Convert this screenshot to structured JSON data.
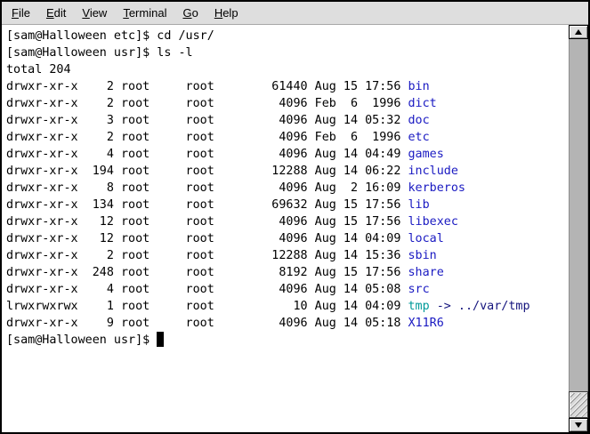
{
  "palette": {
    "menu_bg": "#dedede",
    "terminal_bg": "#ffffff",
    "terminal_fg": "#000000",
    "dir_color": "#1a1ac2",
    "symlink_color": "#009a9a",
    "symlink_target_color": "#14147d"
  },
  "menu_bar": {
    "items": [
      {
        "label": "File"
      },
      {
        "label": "Edit"
      },
      {
        "label": "View"
      },
      {
        "label": "Terminal"
      },
      {
        "label": "Go"
      },
      {
        "label": "Help"
      }
    ]
  },
  "terminal": {
    "history": [
      "[sam@Halloween etc]$ cd /usr/",
      "[sam@Halloween usr]$ ls -l",
      "total 204"
    ],
    "listing": [
      {
        "perms": "drwxr-xr-x",
        "links": 2,
        "owner": "root",
        "group": "root",
        "size": 61440,
        "month": "Aug",
        "day": "15",
        "time": "17:56",
        "name": "bin",
        "type": "dir"
      },
      {
        "perms": "drwxr-xr-x",
        "links": 2,
        "owner": "root",
        "group": "root",
        "size": 4096,
        "month": "Feb",
        "day": "6",
        "time": "1996",
        "name": "dict",
        "type": "dir"
      },
      {
        "perms": "drwxr-xr-x",
        "links": 3,
        "owner": "root",
        "group": "root",
        "size": 4096,
        "month": "Aug",
        "day": "14",
        "time": "05:32",
        "name": "doc",
        "type": "dir"
      },
      {
        "perms": "drwxr-xr-x",
        "links": 2,
        "owner": "root",
        "group": "root",
        "size": 4096,
        "month": "Feb",
        "day": "6",
        "time": "1996",
        "name": "etc",
        "type": "dir"
      },
      {
        "perms": "drwxr-xr-x",
        "links": 4,
        "owner": "root",
        "group": "root",
        "size": 4096,
        "month": "Aug",
        "day": "14",
        "time": "04:49",
        "name": "games",
        "type": "dir"
      },
      {
        "perms": "drwxr-xr-x",
        "links": 194,
        "owner": "root",
        "group": "root",
        "size": 12288,
        "month": "Aug",
        "day": "14",
        "time": "06:22",
        "name": "include",
        "type": "dir"
      },
      {
        "perms": "drwxr-xr-x",
        "links": 8,
        "owner": "root",
        "group": "root",
        "size": 4096,
        "month": "Aug",
        "day": "2",
        "time": "16:09",
        "name": "kerberos",
        "type": "dir"
      },
      {
        "perms": "drwxr-xr-x",
        "links": 134,
        "owner": "root",
        "group": "root",
        "size": 69632,
        "month": "Aug",
        "day": "15",
        "time": "17:56",
        "name": "lib",
        "type": "dir"
      },
      {
        "perms": "drwxr-xr-x",
        "links": 12,
        "owner": "root",
        "group": "root",
        "size": 4096,
        "month": "Aug",
        "day": "15",
        "time": "17:56",
        "name": "libexec",
        "type": "dir"
      },
      {
        "perms": "drwxr-xr-x",
        "links": 12,
        "owner": "root",
        "group": "root",
        "size": 4096,
        "month": "Aug",
        "day": "14",
        "time": "04:09",
        "name": "local",
        "type": "dir"
      },
      {
        "perms": "drwxr-xr-x",
        "links": 2,
        "owner": "root",
        "group": "root",
        "size": 12288,
        "month": "Aug",
        "day": "14",
        "time": "15:36",
        "name": "sbin",
        "type": "dir"
      },
      {
        "perms": "drwxr-xr-x",
        "links": 248,
        "owner": "root",
        "group": "root",
        "size": 8192,
        "month": "Aug",
        "day": "15",
        "time": "17:56",
        "name": "share",
        "type": "dir"
      },
      {
        "perms": "drwxr-xr-x",
        "links": 4,
        "owner": "root",
        "group": "root",
        "size": 4096,
        "month": "Aug",
        "day": "14",
        "time": "05:08",
        "name": "src",
        "type": "dir"
      },
      {
        "perms": "lrwxrwxrwx",
        "links": 1,
        "owner": "root",
        "group": "root",
        "size": 10,
        "month": "Aug",
        "day": "14",
        "time": "04:09",
        "name": "tmp",
        "type": "symlink",
        "target": "../var/tmp"
      },
      {
        "perms": "drwxr-xr-x",
        "links": 9,
        "owner": "root",
        "group": "root",
        "size": 4096,
        "month": "Aug",
        "day": "14",
        "time": "05:18",
        "name": "X11R6",
        "type": "dir"
      }
    ],
    "prompt": "[sam@Halloween usr]$ ",
    "cursor_visible": true
  }
}
